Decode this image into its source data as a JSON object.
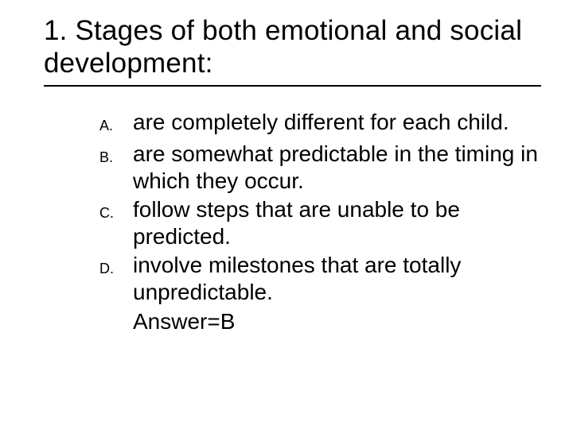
{
  "title": "1.  Stages of both emotional and social development:",
  "options": [
    {
      "letter": "A.",
      "text": "are completely different for each child."
    },
    {
      "letter": "B.",
      "text": "are somewhat predictable in the timing in which they occur."
    },
    {
      "letter": "C.",
      "text": "follow steps that are unable to be predicted."
    },
    {
      "letter": "D.",
      "text": "involve milestones that are totally unpredictable."
    }
  ],
  "answer": "Answer=B",
  "style": {
    "background_color": "#ffffff",
    "text_color": "#000000",
    "title_fontsize": 35,
    "option_fontsize": 28,
    "option_letter_fontsize": 18,
    "font_family": "Verdana",
    "underline_color": "#000000"
  }
}
